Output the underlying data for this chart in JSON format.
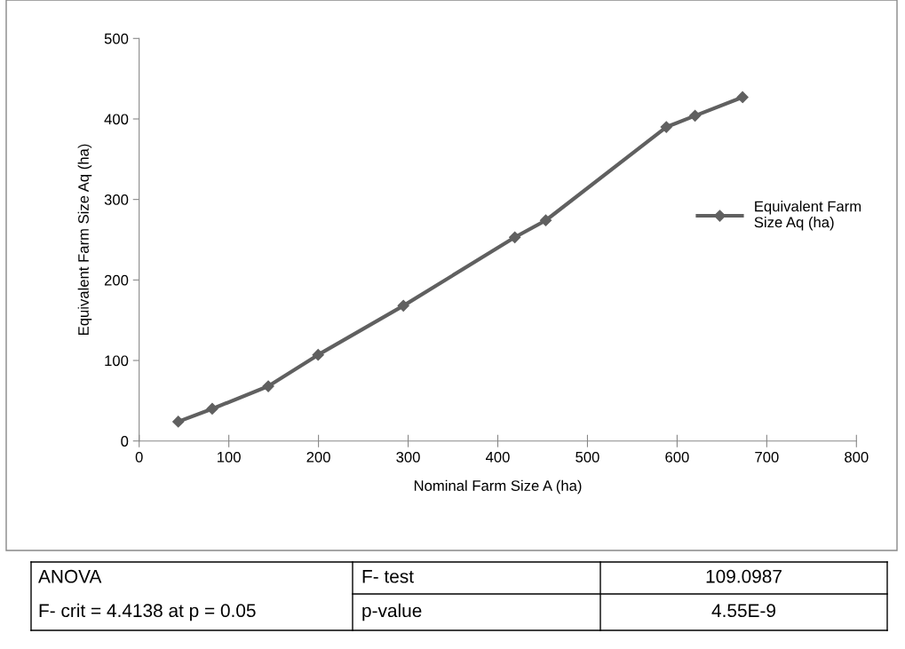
{
  "chart_data": {
    "type": "line",
    "xlabel": "Nominal Farm Size A (ha)",
    "ylabel": "Equivalent Farm Size Aq (ha)",
    "x": [
      43.6,
      81.5,
      144,
      199.6,
      294.7,
      419,
      453.5,
      588,
      620,
      673
    ],
    "series": [
      {
        "name": "Equivalent Farm Size Aq (ha)",
        "color": "#606060",
        "values": [
          24,
          40,
          68,
          107,
          168,
          253,
          274,
          390,
          404,
          427
        ]
      }
    ],
    "xlim": [
      0,
      800
    ],
    "xticks": [
      0,
      100,
      200,
      300,
      400,
      500,
      600,
      700,
      800
    ],
    "ylim": [
      0,
      500
    ],
    "yticks": [
      0,
      100,
      200,
      300,
      400,
      500
    ],
    "marker": "diamond",
    "line_style": "solid",
    "legend": "right",
    "annotations": [
      "ANOVA",
      "F- crit = 4.4138 at p = 0.05",
      "F- test",
      "p-value",
      "109.0987",
      "4.55E-9"
    ]
  }
}
